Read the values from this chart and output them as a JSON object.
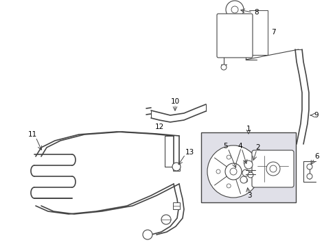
{
  "bg_color": "#ffffff",
  "line_color": "#444444",
  "label_color": "#000000",
  "box_fill": "#e0e0e8",
  "figsize": [
    4.89,
    3.6
  ],
  "dpi": 100
}
